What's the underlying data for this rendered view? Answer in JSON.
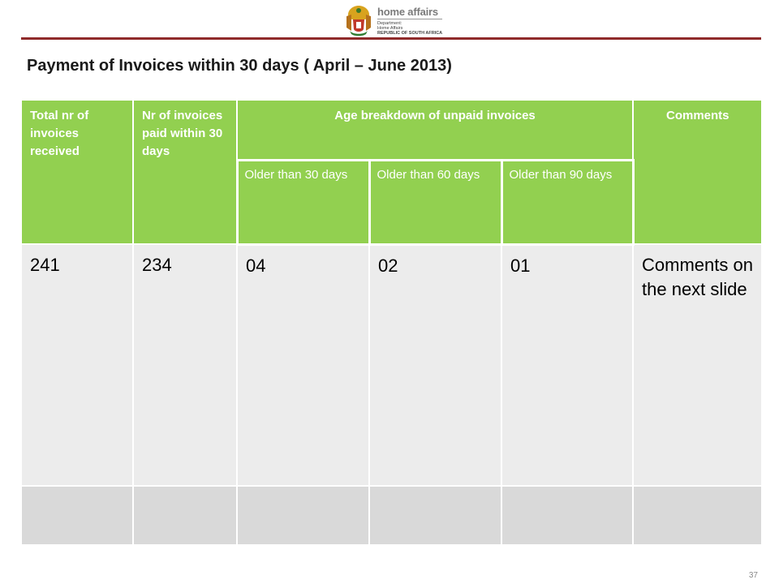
{
  "header": {
    "logo_brand": "home affairs",
    "logo_sub_1": "Department:",
    "logo_sub_2": "Home Affairs",
    "logo_sub_3": "REPUBLIC OF SOUTH AFRICA"
  },
  "slide": {
    "title": "Payment of Invoices within 30 days ( April – June 2013)",
    "page_number": "37"
  },
  "table": {
    "headers": {
      "total": "Total nr of invoices received",
      "paid": "Nr of invoices paid within 30 days",
      "age_breakdown": "Age breakdown of unpaid invoices",
      "comments": "Comments"
    },
    "sub_headers": [
      "Older than 30 days",
      "Older than 60 days",
      "Older than 90 days"
    ],
    "rows": [
      [
        "241",
        "234",
        "04",
        "02",
        "01",
        "Comments on the next slide"
      ],
      [
        "",
        "",
        "",
        "",
        "",
        ""
      ]
    ]
  },
  "colors": {
    "header_green": "#92d050",
    "row_light": "#ececec",
    "row_dark": "#d9d9d9",
    "rule": "#8f2a2a"
  }
}
